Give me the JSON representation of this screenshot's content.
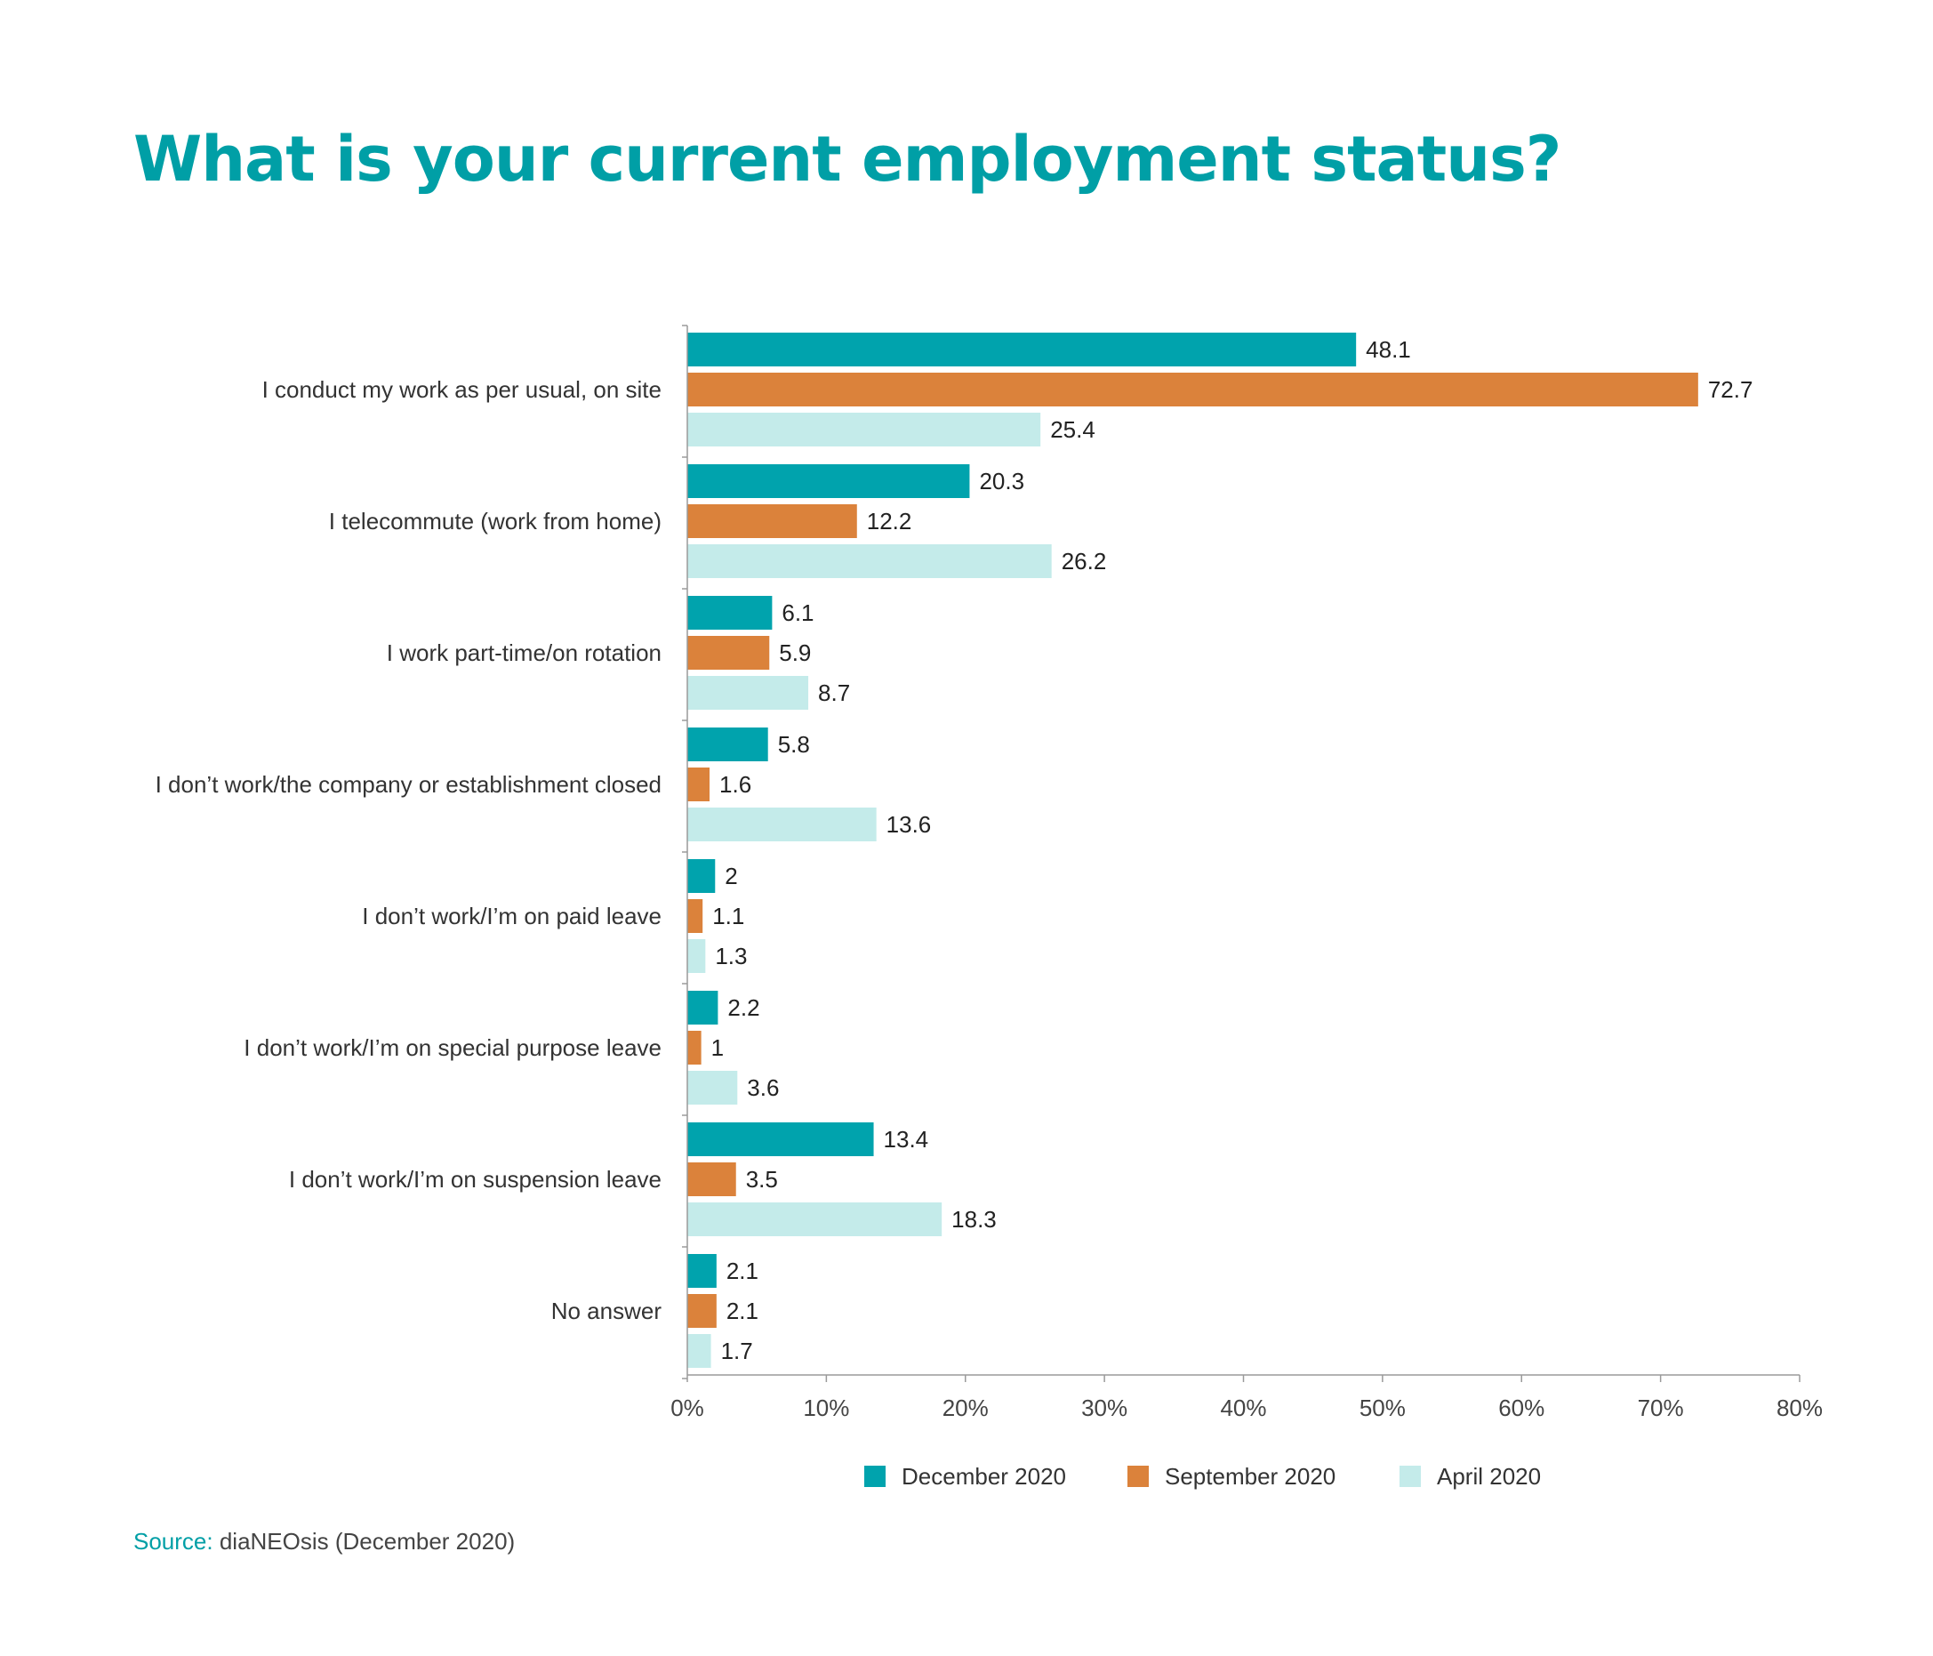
{
  "chart_data": {
    "type": "bar",
    "orientation": "horizontal",
    "title": "What is your current employment status?",
    "categories": [
      "I conduct my work as per usual, on site",
      "I telecommute (work from home)",
      "I work part-time/on rotation",
      "I don’t work/the company or establishment closed",
      "I don’t work/I’m on paid leave",
      "I don’t work/I’m on special purpose leave",
      "I don’t work/I’m on suspension leave",
      "No answer"
    ],
    "series": [
      {
        "name": "December 2020",
        "color": "#00a3ad",
        "values": [
          48.1,
          20.3,
          6.1,
          5.8,
          2,
          2.2,
          13.4,
          2.1
        ]
      },
      {
        "name": "September 2020",
        "color": "#db823b",
        "values": [
          72.7,
          12.2,
          5.9,
          1.6,
          1.1,
          1,
          3.5,
          2.1
        ]
      },
      {
        "name": "April 2020",
        "color": "#c4ebea",
        "values": [
          25.4,
          26.2,
          8.7,
          13.6,
          1.3,
          3.6,
          18.3,
          1.7
        ]
      }
    ],
    "xlim": [
      0,
      80
    ],
    "xticks": [
      "0%",
      "10%",
      "20%",
      "30%",
      "40%",
      "50%",
      "60%",
      "70%",
      "80%"
    ],
    "legend_position": "bottom-center",
    "grid": false
  },
  "source": {
    "prefix": "Source:",
    "text": " diaNEOsis (December 2020)"
  }
}
